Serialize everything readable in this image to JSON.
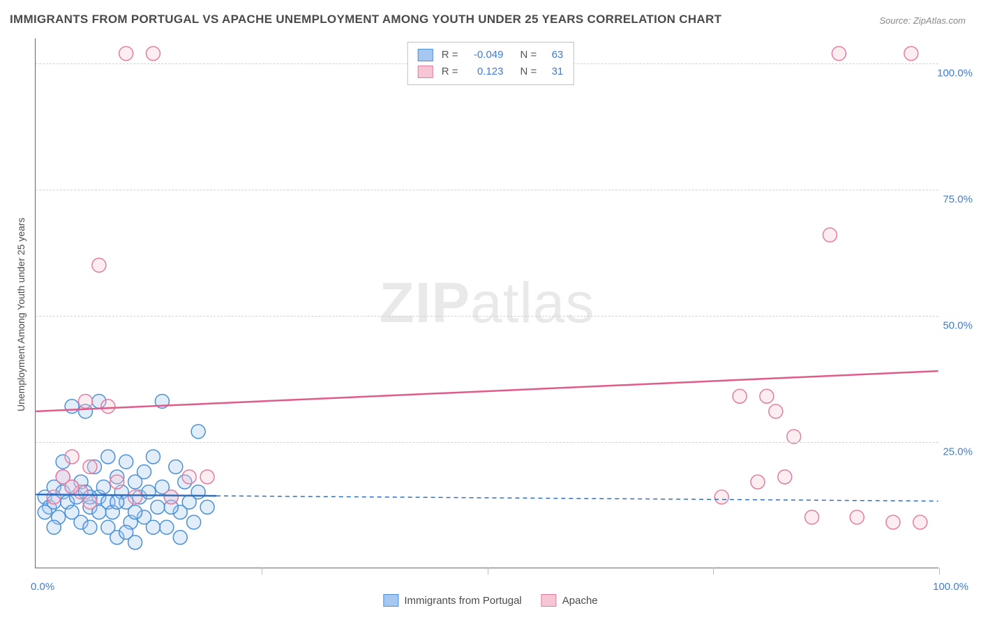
{
  "title": "IMMIGRANTS FROM PORTUGAL VS APACHE UNEMPLOYMENT AMONG YOUTH UNDER 25 YEARS CORRELATION CHART",
  "source": "Source: ZipAtlas.com",
  "watermark_prefix": "ZIP",
  "watermark_suffix": "atlas",
  "y_axis_label": "Unemployment Among Youth under 25 years",
  "chart": {
    "type": "scatter",
    "xlim": [
      0,
      100
    ],
    "ylim": [
      0,
      105
    ],
    "x_ticks": [
      0,
      25,
      50,
      75,
      100
    ],
    "y_ticks": [
      25,
      50,
      75,
      100
    ],
    "x_tick_labels": [
      "0.0%",
      "100.0%"
    ],
    "y_tick_labels": [
      "25.0%",
      "50.0%",
      "75.0%",
      "100.0%"
    ],
    "grid_color": "#d0d0d0",
    "background_color": "#ffffff",
    "series": [
      {
        "name": "Immigrants from Portugal",
        "fill_color": "#a6c8f0",
        "stroke_color": "#4a8fd8",
        "line_color": "#2f6fc0",
        "marker_radius": 10,
        "correlation_r": "-0.049",
        "n": "63",
        "trend_start_y": 14.5,
        "trend_end_y": 13.2,
        "trend_solid_end_x": 20,
        "points": [
          [
            1,
            14
          ],
          [
            1.5,
            12
          ],
          [
            2,
            16
          ],
          [
            2.5,
            10
          ],
          [
            3,
            15
          ],
          [
            3,
            18
          ],
          [
            3.5,
            13
          ],
          [
            4,
            11
          ],
          [
            4.5,
            14
          ],
          [
            5,
            17
          ],
          [
            5,
            9
          ],
          [
            5.5,
            15
          ],
          [
            6,
            12
          ],
          [
            6.5,
            20
          ],
          [
            7,
            14
          ],
          [
            7,
            33
          ],
          [
            7.5,
            16
          ],
          [
            8,
            22
          ],
          [
            8,
            13
          ],
          [
            8.5,
            11
          ],
          [
            9,
            18
          ],
          [
            9.5,
            15
          ],
          [
            10,
            21
          ],
          [
            10,
            13
          ],
          [
            10.5,
            9
          ],
          [
            11,
            17
          ],
          [
            11,
            5
          ],
          [
            11.5,
            14
          ],
          [
            12,
            19
          ],
          [
            12,
            10
          ],
          [
            12.5,
            15
          ],
          [
            13,
            22
          ],
          [
            13.5,
            12
          ],
          [
            14,
            16
          ],
          [
            14,
            33
          ],
          [
            14.5,
            8
          ],
          [
            15,
            14
          ],
          [
            15.5,
            20
          ],
          [
            16,
            11
          ],
          [
            16.5,
            17
          ],
          [
            17,
            13
          ],
          [
            17.5,
            9
          ],
          [
            18,
            15
          ],
          [
            18,
            27
          ],
          [
            19,
            12
          ],
          [
            4,
            32
          ],
          [
            5.5,
            31
          ],
          [
            9,
            6
          ],
          [
            2,
            8
          ],
          [
            3,
            21
          ],
          [
            6,
            8
          ],
          [
            8,
            8
          ],
          [
            10,
            7
          ],
          [
            13,
            8
          ],
          [
            16,
            6
          ],
          [
            1,
            11
          ],
          [
            2,
            13
          ],
          [
            4,
            16
          ],
          [
            6,
            14
          ],
          [
            9,
            13
          ],
          [
            11,
            11
          ],
          [
            15,
            12
          ],
          [
            7,
            11
          ]
        ]
      },
      {
        "name": "Apache",
        "fill_color": "#f7c6d4",
        "stroke_color": "#e57ba0",
        "line_color": "#e05a8a",
        "marker_radius": 10,
        "correlation_r": "0.123",
        "n": "31",
        "trend_start_y": 31,
        "trend_end_y": 39,
        "trend_solid_end_x": 100,
        "points": [
          [
            3,
            18
          ],
          [
            4,
            22
          ],
          [
            5,
            15
          ],
          [
            5.5,
            33
          ],
          [
            6,
            20
          ],
          [
            7,
            60
          ],
          [
            8,
            32
          ],
          [
            9,
            17
          ],
          [
            10,
            102
          ],
          [
            13,
            102
          ],
          [
            17,
            18
          ],
          [
            19,
            18
          ],
          [
            76,
            14
          ],
          [
            78,
            34
          ],
          [
            80,
            17
          ],
          [
            81,
            34
          ],
          [
            82,
            31
          ],
          [
            83,
            18
          ],
          [
            84,
            26
          ],
          [
            86,
            10
          ],
          [
            88,
            66
          ],
          [
            89,
            102
          ],
          [
            91,
            10
          ],
          [
            95,
            9
          ],
          [
            97,
            102
          ],
          [
            98,
            9
          ],
          [
            2,
            14
          ],
          [
            6,
            13
          ],
          [
            4,
            16
          ],
          [
            11,
            14
          ],
          [
            15,
            14
          ]
        ]
      }
    ]
  },
  "bottom_legend": [
    {
      "label": "Immigrants from Portugal",
      "fill": "#a6c8f0",
      "stroke": "#4a8fd8"
    },
    {
      "label": "Apache",
      "fill": "#f7c6d4",
      "stroke": "#e57ba0"
    }
  ]
}
